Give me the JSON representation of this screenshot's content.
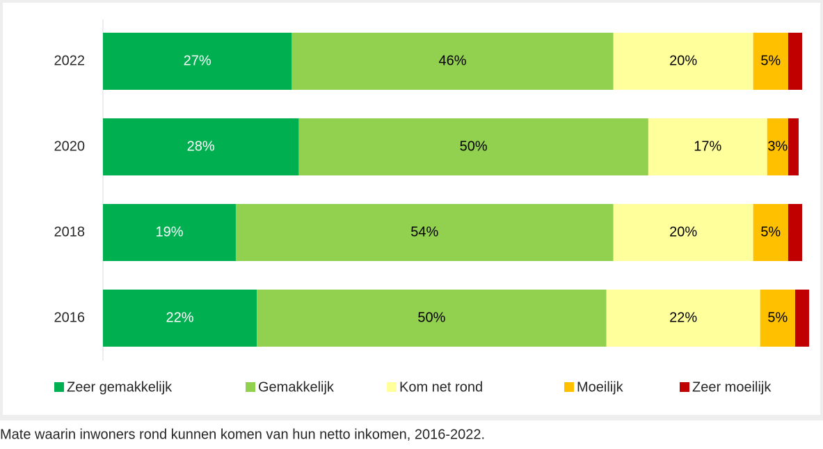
{
  "chart_data": {
    "type": "stacked-barh",
    "caption": "Mate waarin inwoners rond kunnen komen van hun netto inkomen, 2016-2022.",
    "categories": [
      "2022",
      "2020",
      "2018",
      "2016"
    ],
    "series": [
      {
        "name": "Zeer gemakkelijk",
        "color": "#00b050",
        "label_color": "#ffffff",
        "values": [
          27,
          28,
          19,
          22
        ],
        "value_labels": [
          "27%",
          "28%",
          "19%",
          "22%"
        ]
      },
      {
        "name": "Gemakkelijk",
        "color": "#92d050",
        "label_color": "#000000",
        "values": [
          46,
          50,
          54,
          50
        ],
        "value_labels": [
          "46%",
          "50%",
          "54%",
          "50%"
        ]
      },
      {
        "name": "Kom net rond",
        "color": "#ffff9c",
        "label_color": "#000000",
        "values": [
          20,
          17,
          20,
          22
        ],
        "value_labels": [
          "20%",
          "17%",
          "20%",
          "22%"
        ]
      },
      {
        "name": "Moeilijk",
        "color": "#ffc000",
        "label_color": "#000000",
        "values": [
          5,
          3,
          5,
          5
        ],
        "value_labels": [
          "5%",
          "3%",
          "5%",
          "5%"
        ]
      },
      {
        "name": "Zeer moeilijk",
        "color": "#c00000",
        "values": [
          2,
          1.5,
          2,
          2
        ]
      }
    ],
    "xlim": [
      0,
      100
    ],
    "legend": "bottom"
  }
}
